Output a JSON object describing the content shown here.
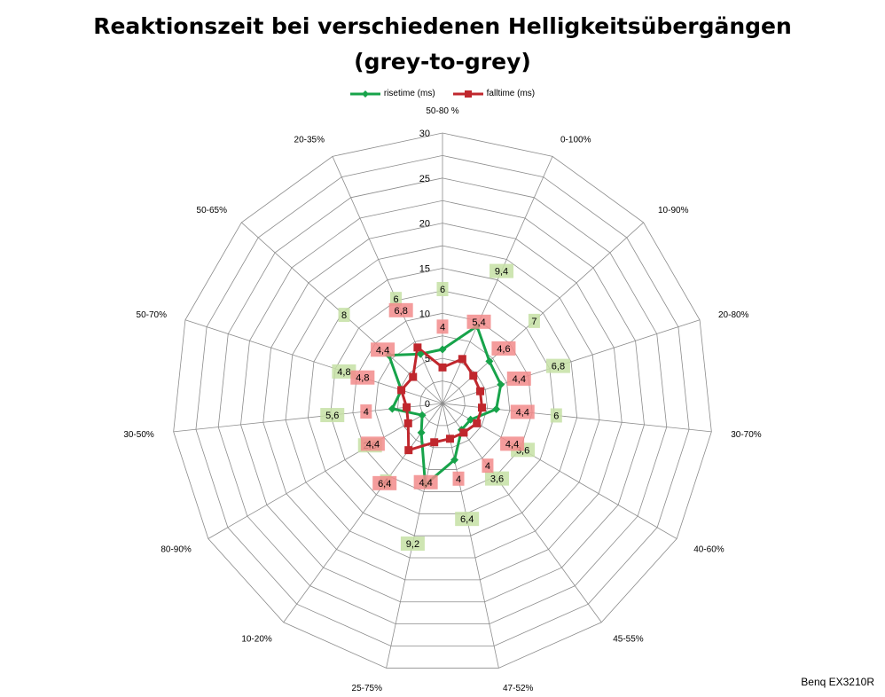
{
  "chart_data": {
    "type": "radar",
    "title": [
      "Reaktionszeit bei verschiedenen Helligkeitsübergängen",
      "(grey-to-grey)"
    ],
    "categories": [
      "50-80 %",
      "0-100%",
      "10-90%",
      "20-80%",
      "30-70%",
      "40-60%",
      "45-55%",
      "47-52%",
      "25-75%",
      "10-20%",
      "80-90%",
      "30-50%",
      "50-70%",
      "50-65%",
      "20-35%"
    ],
    "rlim": [
      0,
      30
    ],
    "ticks": [
      0,
      5,
      10,
      15,
      20,
      25,
      30
    ],
    "tick_labels": [
      "0",
      "5",
      "10",
      "15",
      "20",
      "25",
      "30"
    ],
    "grid": true,
    "legend": "top",
    "series": [
      {
        "name": "risetime (ms)",
        "color": "#17a34a",
        "marker": "diamond",
        "values": [
          6,
          9.4,
          7,
          6.8,
          6,
          3.6,
          3.6,
          6.4,
          9.2,
          4,
          2.6,
          5.6,
          4.8,
          8,
          6
        ],
        "labels": [
          "6",
          "9,4",
          "7",
          "6,8",
          "6",
          "3,6",
          "3,6",
          "6,4",
          "9,2",
          "4",
          "2,6",
          "5,6",
          "4,8",
          "8",
          "6"
        ],
        "label_bg": "#c5e0a5"
      },
      {
        "name": "falltime (ms)",
        "color": "#c0272d",
        "marker": "square",
        "values": [
          4,
          5.4,
          4.6,
          4.4,
          4.4,
          4.4,
          4,
          4,
          4.4,
          6.4,
          4.4,
          4,
          4.8,
          4.4,
          6.8
        ],
        "labels": [
          "4",
          "5,4",
          "4,6",
          "4,4",
          "4,4",
          "4,4",
          "4",
          "4",
          "4,4",
          "6,4",
          "4,4",
          "4",
          "4,8",
          "4,4",
          "6,8"
        ],
        "label_bg": "#f28b8b"
      }
    ],
    "annotation": "Benq EX3210R"
  }
}
